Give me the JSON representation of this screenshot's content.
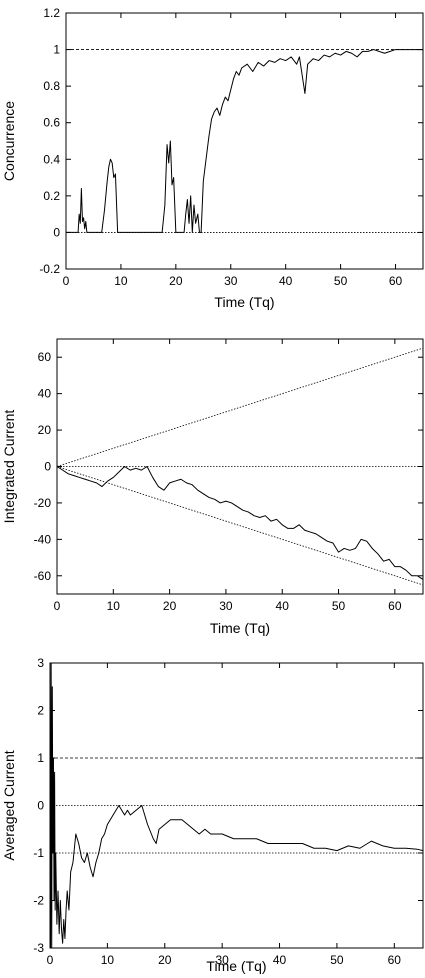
{
  "chart_data": [
    {
      "type": "line",
      "xlabel": "Time (Tq)",
      "ylabel": "Concurrence",
      "xlim": [
        0,
        65
      ],
      "ylim": [
        -0.2,
        1.2
      ],
      "xticks": [
        "0",
        "10",
        "20",
        "30",
        "40",
        "50",
        "60"
      ],
      "yticks": [
        "-0.2",
        "0",
        "0.2",
        "0.4",
        "0.6",
        "0.8",
        "1",
        "1.2"
      ],
      "reference_lines": [
        {
          "y": 1,
          "style": "dashed"
        },
        {
          "y": 0,
          "style": "dotted"
        }
      ],
      "series": [
        {
          "x": [
            0,
            2.2,
            2.4,
            2.6,
            2.8,
            3.0,
            3.2,
            3.4,
            3.6,
            3.8,
            4.0,
            6.5,
            7.0,
            7.5,
            7.8,
            8.1,
            8.4,
            8.7,
            9.0,
            9.4,
            17.5,
            18.0,
            18.4,
            18.7,
            19.0,
            19.3,
            19.6,
            20.0,
            21.5,
            21.8,
            22.1,
            22.4,
            22.7,
            23.0,
            23.3,
            23.6,
            24.0,
            24.3,
            24.6,
            25.0,
            25.5,
            26.0,
            26.5,
            27.0,
            27.5,
            28.0,
            28.5,
            29.0,
            29.5,
            30.0,
            30.5,
            31.0,
            31.5,
            32.0,
            33.0,
            34.0,
            35.0,
            36.0,
            37.0,
            38.0,
            39.0,
            40.0,
            41.0,
            42.0,
            42.5,
            43.0,
            43.5,
            44.0,
            45.0,
            46.0,
            47.0,
            48.0,
            49.0,
            50.0,
            51.0,
            52.0,
            53.0,
            54.0,
            55.0,
            56.0,
            57.0,
            58.0,
            59.0,
            60.0,
            62.0,
            65.0
          ],
          "y": [
            0,
            0,
            0.1,
            0.05,
            0.24,
            0.06,
            0.08,
            0.02,
            0.06,
            0.0,
            0,
            0,
            0.12,
            0.28,
            0.36,
            0.4,
            0.38,
            0.3,
            0.32,
            0,
            0,
            0.15,
            0.48,
            0.38,
            0.5,
            0.26,
            0.3,
            0,
            0,
            0.1,
            0.18,
            0.05,
            0.2,
            0.0,
            0.15,
            0.05,
            0.1,
            0.0,
            0.0,
            0.28,
            0.4,
            0.52,
            0.62,
            0.66,
            0.68,
            0.64,
            0.7,
            0.74,
            0.72,
            0.78,
            0.84,
            0.88,
            0.86,
            0.9,
            0.92,
            0.88,
            0.93,
            0.91,
            0.94,
            0.93,
            0.95,
            0.94,
            0.96,
            0.92,
            0.96,
            0.86,
            0.76,
            0.92,
            0.95,
            0.94,
            0.97,
            0.96,
            0.98,
            0.97,
            0.99,
            0.98,
            0.96,
            0.99,
            0.99,
            1.0,
            0.99,
            0.98,
            0.99,
            1.0,
            1.0,
            1.0
          ]
        }
      ]
    },
    {
      "type": "line",
      "xlabel": "Time (Tq)",
      "ylabel": "Integrated Current",
      "xlim": [
        0,
        65
      ],
      "ylim": [
        -70,
        70
      ],
      "xticks": [
        "0",
        "10",
        "20",
        "30",
        "40",
        "50",
        "60"
      ],
      "yticks": [
        "-60",
        "-40",
        "-20",
        "0",
        "20",
        "40",
        "60"
      ],
      "reference_lines": [
        {
          "x": [
            0,
            65
          ],
          "y": [
            0,
            65
          ],
          "style": "dotted"
        },
        {
          "x": [
            0,
            65
          ],
          "y": [
            0,
            0
          ],
          "style": "dotted"
        },
        {
          "x": [
            0,
            65
          ],
          "y": [
            0,
            -65
          ],
          "style": "dotted"
        }
      ],
      "series": [
        {
          "x": [
            0,
            1,
            2,
            3,
            4,
            5,
            6,
            7,
            8,
            9,
            10,
            11,
            12,
            13,
            14,
            15,
            16,
            17,
            18,
            19,
            20,
            21,
            22,
            23,
            24,
            25,
            26,
            27,
            28,
            29,
            30,
            31,
            32,
            33,
            34,
            35,
            36,
            37,
            38,
            39,
            40,
            41,
            42,
            43,
            44,
            45,
            46,
            47,
            48,
            49,
            50,
            51,
            52,
            53,
            54,
            55,
            56,
            57,
            58,
            59,
            60,
            61,
            62,
            63,
            64,
            65
          ],
          "y": [
            0,
            -2,
            -4,
            -5,
            -6,
            -7,
            -8,
            -9,
            -11,
            -8,
            -6,
            -3,
            0,
            -2,
            -1,
            -2,
            0,
            -6,
            -11,
            -13,
            -9,
            -8,
            -7,
            -9,
            -10,
            -13,
            -15,
            -17,
            -18,
            -20,
            -19,
            -20,
            -22,
            -24,
            -25,
            -27,
            -28,
            -27,
            -30,
            -29,
            -32,
            -34,
            -34,
            -32,
            -35,
            -36,
            -37,
            -39,
            -41,
            -42,
            -47,
            -45,
            -46,
            -45,
            -40,
            -41,
            -45,
            -48,
            -52,
            -51,
            -55,
            -55,
            -57,
            -60,
            -60,
            -62
          ]
        }
      ]
    },
    {
      "type": "line",
      "xlabel": "Time (Tq)",
      "ylabel": "Averaged Current",
      "xlim": [
        0,
        65
      ],
      "ylim": [
        -3,
        3
      ],
      "xticks": [
        "0",
        "10",
        "20",
        "30",
        "40",
        "50",
        "60"
      ],
      "yticks": [
        "-3",
        "-2",
        "-1",
        "0",
        "1",
        "2",
        "3"
      ],
      "reference_lines": [
        {
          "y": 1,
          "style": "dashed"
        },
        {
          "y": 0,
          "style": "dotted"
        },
        {
          "y": -1,
          "style": "dotted"
        }
      ],
      "series": [
        {
          "x": [
            0.1,
            0.2,
            0.3,
            0.4,
            0.5,
            0.6,
            0.7,
            0.8,
            0.9,
            1.0,
            1.2,
            1.4,
            1.6,
            1.8,
            2.0,
            2.2,
            2.4,
            2.6,
            2.8,
            3.0,
            3.3,
            3.6,
            4.0,
            4.5,
            5.0,
            5.5,
            6.0,
            6.5,
            7.0,
            7.5,
            8.0,
            8.5,
            9.0,
            9.5,
            10.0,
            10.5,
            11.0,
            11.5,
            12.0,
            12.5,
            13.0,
            13.5,
            14.0,
            15.0,
            16.0,
            17.0,
            18.0,
            18.5,
            19.0,
            20.0,
            21.0,
            22.0,
            23.0,
            24.0,
            25.0,
            26.0,
            27.0,
            28.0,
            30.0,
            32.0,
            34.0,
            36.0,
            38.0,
            40.0,
            42.0,
            44.0,
            46.0,
            48.0,
            50.0,
            51.0,
            52.0,
            54.0,
            56.0,
            58.0,
            60.0,
            62.0,
            64.0,
            65.0
          ],
          "y": [
            -3.0,
            3.0,
            -3.0,
            2.5,
            -1.0,
            1.0,
            -2.0,
            0.7,
            -2.2,
            -1.0,
            -2.5,
            -1.8,
            -2.7,
            -2.0,
            -2.6,
            -2.9,
            -2.4,
            -2.8,
            -2.2,
            -1.8,
            -2.2,
            -1.4,
            -1.2,
            -0.6,
            -0.8,
            -1.1,
            -1.2,
            -1.0,
            -1.3,
            -1.5,
            -1.2,
            -1.0,
            -0.7,
            -0.6,
            -0.4,
            -0.3,
            -0.2,
            -0.1,
            0.0,
            -0.1,
            -0.2,
            -0.1,
            -0.2,
            -0.1,
            0.0,
            -0.4,
            -0.7,
            -0.8,
            -0.5,
            -0.4,
            -0.3,
            -0.3,
            -0.3,
            -0.4,
            -0.5,
            -0.6,
            -0.5,
            -0.6,
            -0.6,
            -0.7,
            -0.7,
            -0.7,
            -0.8,
            -0.8,
            -0.8,
            -0.8,
            -0.9,
            -0.9,
            -0.95,
            -0.9,
            -0.85,
            -0.9,
            -0.75,
            -0.85,
            -0.9,
            -0.9,
            -0.92,
            -0.95
          ]
        }
      ]
    }
  ]
}
